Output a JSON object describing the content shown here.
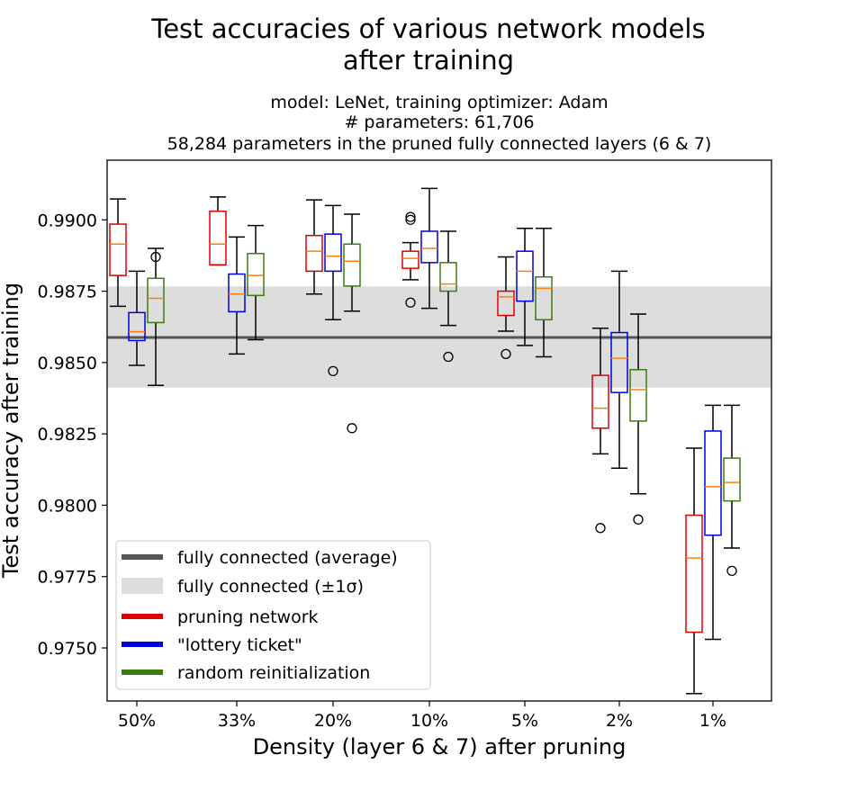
{
  "chart_data": {
    "type": "box",
    "title": "Test accuracies of various network models",
    "title_line2": "after training",
    "subtitle": "model: LeNet, training optimizer: Adam",
    "subtitle_line2": "# parameters: 61,706",
    "subtitle_line3": "58,284 parameters in the pruned fully connected layers (6 & 7)",
    "xlabel": "Density (layer 6 & 7) after pruning",
    "ylabel": "Test accuracy after training",
    "categories": [
      "50%",
      "33%",
      "20%",
      "10%",
      "5%",
      "2%",
      "1%"
    ],
    "ylim": [
      0.97314,
      0.99209
    ],
    "yticks": [
      0.975,
      0.9775,
      0.98,
      0.9825,
      0.985,
      0.9875,
      0.99
    ],
    "ytick_labels": [
      "0.9750",
      "0.9775",
      "0.9800",
      "0.9825",
      "0.9850",
      "0.9875",
      "0.9900"
    ],
    "reference": {
      "label": "fully connected (average)",
      "band_label": "fully connected (±1σ)",
      "mean": 0.98588,
      "band": [
        0.98412,
        0.98767
      ],
      "line_color": "#555555",
      "band_color": "#dddddd"
    },
    "median_color": "#ff7f0e",
    "series": [
      {
        "name": "pruning network",
        "color": "#dd0000",
        "boxes": [
          {
            "whislo": 0.98697,
            "q1": 0.98805,
            "med": 0.98915,
            "q3": 0.98985,
            "whishi": 0.99073,
            "fliers": []
          },
          {
            "whislo": 0.98842,
            "q1": 0.98842,
            "med": 0.98915,
            "q3": 0.9903,
            "whishi": 0.9908,
            "fliers": []
          },
          {
            "whislo": 0.9874,
            "q1": 0.9882,
            "med": 0.9889,
            "q3": 0.98945,
            "whishi": 0.9907,
            "fliers": []
          },
          {
            "whislo": 0.9879,
            "q1": 0.9883,
            "med": 0.98865,
            "q3": 0.9889,
            "whishi": 0.9892,
            "fliers": [
              0.99,
              0.9901,
              0.9871
            ]
          },
          {
            "whislo": 0.9861,
            "q1": 0.98665,
            "med": 0.9873,
            "q3": 0.9875,
            "whishi": 0.9887,
            "fliers": [
              0.9853
            ]
          },
          {
            "whislo": 0.9818,
            "q1": 0.9827,
            "med": 0.9834,
            "q3": 0.98455,
            "whishi": 0.9862,
            "fliers": [
              0.9792
            ]
          },
          {
            "whislo": 0.9734,
            "q1": 0.97555,
            "med": 0.97815,
            "q3": 0.97965,
            "whishi": 0.982,
            "fliers": []
          }
        ]
      },
      {
        "name": "\"lottery ticket\"",
        "color": "#0000dd",
        "boxes": [
          {
            "whislo": 0.9849,
            "q1": 0.98577,
            "med": 0.98608,
            "q3": 0.98675,
            "whishi": 0.9882,
            "fliers": []
          },
          {
            "whislo": 0.9853,
            "q1": 0.98678,
            "med": 0.9874,
            "q3": 0.9881,
            "whishi": 0.9894,
            "fliers": []
          },
          {
            "whislo": 0.9865,
            "q1": 0.9882,
            "med": 0.98873,
            "q3": 0.9895,
            "whishi": 0.9905,
            "fliers": [
              0.9847
            ]
          },
          {
            "whislo": 0.9869,
            "q1": 0.9885,
            "med": 0.989,
            "q3": 0.9896,
            "whishi": 0.9911,
            "fliers": []
          },
          {
            "whislo": 0.9856,
            "q1": 0.98715,
            "med": 0.9882,
            "q3": 0.9889,
            "whishi": 0.9897,
            "fliers": []
          },
          {
            "whislo": 0.9813,
            "q1": 0.98395,
            "med": 0.98515,
            "q3": 0.98605,
            "whishi": 0.9882,
            "fliers": []
          },
          {
            "whislo": 0.9753,
            "q1": 0.97895,
            "med": 0.98065,
            "q3": 0.9826,
            "whishi": 0.9835,
            "fliers": []
          }
        ]
      },
      {
        "name": "random reinitialization",
        "color": "#3a7d12",
        "boxes": [
          {
            "whislo": 0.9842,
            "q1": 0.9864,
            "med": 0.98725,
            "q3": 0.98795,
            "whishi": 0.989,
            "fliers": [
              0.9887
            ]
          },
          {
            "whislo": 0.9858,
            "q1": 0.98735,
            "med": 0.98805,
            "q3": 0.98882,
            "whishi": 0.9898,
            "fliers": []
          },
          {
            "whislo": 0.9868,
            "q1": 0.98768,
            "med": 0.98855,
            "q3": 0.98915,
            "whishi": 0.9902,
            "fliers": [
              0.9827
            ]
          },
          {
            "whislo": 0.9863,
            "q1": 0.9875,
            "med": 0.98775,
            "q3": 0.9885,
            "whishi": 0.9896,
            "fliers": [
              0.9852
            ]
          },
          {
            "whislo": 0.9852,
            "q1": 0.9865,
            "med": 0.9876,
            "q3": 0.988,
            "whishi": 0.9897,
            "fliers": []
          },
          {
            "whislo": 0.9804,
            "q1": 0.98295,
            "med": 0.98405,
            "q3": 0.98475,
            "whishi": 0.9867,
            "fliers": [
              0.9795
            ]
          },
          {
            "whislo": 0.9785,
            "q1": 0.98015,
            "med": 0.9808,
            "q3": 0.98165,
            "whishi": 0.9835,
            "fliers": [
              0.9777
            ]
          }
        ]
      }
    ],
    "legend": {
      "location": "lower-left",
      "entries": [
        {
          "label": "fully connected (average)",
          "kind": "line",
          "color": "#555555"
        },
        {
          "label": "fully connected (±1σ)",
          "kind": "band",
          "color": "#dddddd"
        },
        {
          "label": "pruning network",
          "kind": "line",
          "color": "#dd0000"
        },
        {
          "label": "\"lottery ticket\"",
          "kind": "line",
          "color": "#0000dd"
        },
        {
          "label": "random reinitialization",
          "kind": "line",
          "color": "#3a7d12"
        }
      ]
    }
  }
}
